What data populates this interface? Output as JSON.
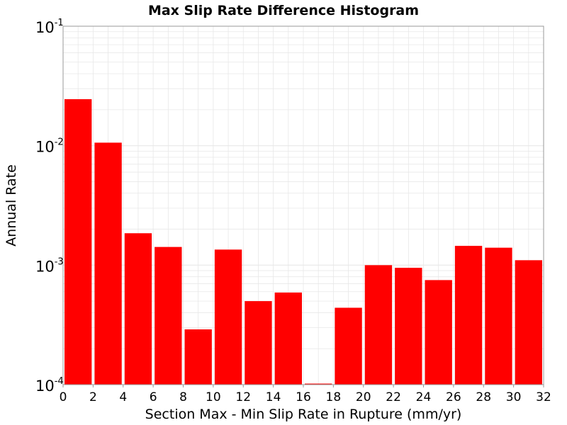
{
  "chart_data": {
    "type": "bar",
    "title": "Max Slip Rate Difference Histogram",
    "xlabel": "Section Max - Min Slip Rate in Rupture (mm/yr)",
    "ylabel": "Annual Rate",
    "y_scale": "log",
    "xlim": [
      0,
      32
    ],
    "ylim": [
      0.0001,
      0.1
    ],
    "grid": true,
    "bin_width": 2,
    "x_ticks": [
      "0",
      "2",
      "4",
      "6",
      "8",
      "10",
      "12",
      "14",
      "16",
      "18",
      "20",
      "22",
      "24",
      "26",
      "28",
      "30",
      "32"
    ],
    "y_ticks": [
      {
        "base": "10",
        "exp": "-1",
        "value": 0.1
      },
      {
        "base": "10",
        "exp": "-2",
        "value": 0.01
      },
      {
        "base": "10",
        "exp": "-3",
        "value": 0.001
      },
      {
        "base": "10",
        "exp": "-4",
        "value": 0.0001
      }
    ],
    "bins": [
      {
        "x": 1,
        "value": 0.0245
      },
      {
        "x": 3,
        "value": 0.0106
      },
      {
        "x": 5,
        "value": 0.00185
      },
      {
        "x": 7,
        "value": 0.00142
      },
      {
        "x": 9,
        "value": 0.00029
      },
      {
        "x": 11,
        "value": 0.00135
      },
      {
        "x": 13,
        "value": 0.0005
      },
      {
        "x": 15,
        "value": 0.00059
      },
      {
        "x": 17,
        "value": 0.000102
      },
      {
        "x": 19,
        "value": 0.00044
      },
      {
        "x": 21,
        "value": 0.001
      },
      {
        "x": 23,
        "value": 0.00095
      },
      {
        "x": 25,
        "value": 0.00075
      },
      {
        "x": 27,
        "value": 0.00145
      },
      {
        "x": 29,
        "value": 0.0014
      },
      {
        "x": 31,
        "value": 0.0011
      }
    ],
    "colors": {
      "bar": "#ff0000",
      "grid": "#e8e8e8",
      "axis": "#999999"
    }
  }
}
